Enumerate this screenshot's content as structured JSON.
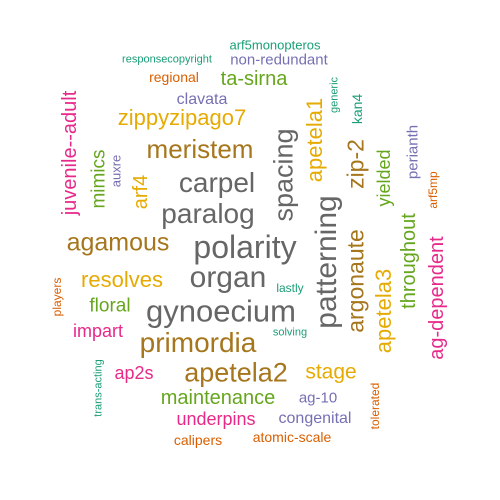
{
  "palette": {
    "green": "#1b9e77",
    "orange": "#d95f02",
    "purple": "#7570b3",
    "magenta": "#e7298a",
    "lime": "#66a61e",
    "gold": "#e6ab02",
    "brown": "#a6761d",
    "gray": "#666666"
  },
  "words": [
    {
      "text": "polarity",
      "color": "#666666"
    },
    {
      "text": "patterning",
      "color": "#666666"
    },
    {
      "text": "gynoecium",
      "color": "#666666"
    },
    {
      "text": "organ",
      "color": "#666666"
    },
    {
      "text": "paralog",
      "color": "#666666"
    },
    {
      "text": "carpel",
      "color": "#666666"
    },
    {
      "text": "spacing",
      "color": "#666666"
    },
    {
      "text": "primordia",
      "color": "#a6761d"
    },
    {
      "text": "apetela2",
      "color": "#a6761d"
    },
    {
      "text": "meristem",
      "color": "#a6761d"
    },
    {
      "text": "agamous",
      "color": "#a6761d"
    },
    {
      "text": "argonaute",
      "color": "#a6761d"
    },
    {
      "text": "zip-2",
      "color": "#a6761d"
    },
    {
      "text": "zippyzipago7",
      "color": "#e6ab02"
    },
    {
      "text": "resolves",
      "color": "#e6ab02"
    },
    {
      "text": "apetela1",
      "color": "#e6ab02"
    },
    {
      "text": "apetela3",
      "color": "#e6ab02"
    },
    {
      "text": "stage",
      "color": "#e6ab02"
    },
    {
      "text": "arf4",
      "color": "#e6ab02"
    },
    {
      "text": "ta-sirna",
      "color": "#66a61e"
    },
    {
      "text": "maintenance",
      "color": "#66a61e"
    },
    {
      "text": "floral",
      "color": "#66a61e"
    },
    {
      "text": "mimics",
      "color": "#66a61e"
    },
    {
      "text": "throughout",
      "color": "#66a61e"
    },
    {
      "text": "yielded",
      "color": "#66a61e"
    },
    {
      "text": "juvenile--adult",
      "color": "#e7298a"
    },
    {
      "text": "ag-dependent",
      "color": "#e7298a"
    },
    {
      "text": "impart",
      "color": "#e7298a"
    },
    {
      "text": "ap2s",
      "color": "#e7298a"
    },
    {
      "text": "underpins",
      "color": "#e7298a"
    },
    {
      "text": "responsecopyright",
      "color": "#1b9e77"
    },
    {
      "text": "arf5monopteros",
      "color": "#1b9e77"
    },
    {
      "text": "generic",
      "color": "#1b9e77"
    },
    {
      "text": "lastly",
      "color": "#1b9e77"
    },
    {
      "text": "solving",
      "color": "#1b9e77"
    },
    {
      "text": "trans-acting",
      "color": "#1b9e77"
    },
    {
      "text": "kan4",
      "color": "#1b9e77"
    },
    {
      "text": "non-redundant",
      "color": "#7570b3"
    },
    {
      "text": "clavata",
      "color": "#7570b3"
    },
    {
      "text": "auxre",
      "color": "#7570b3"
    },
    {
      "text": "perianth",
      "color": "#7570b3"
    },
    {
      "text": "congenital",
      "color": "#7570b3"
    },
    {
      "text": "ag-10",
      "color": "#7570b3"
    },
    {
      "text": "regional",
      "color": "#d95f02"
    },
    {
      "text": "arf5mp",
      "color": "#d95f02"
    },
    {
      "text": "players",
      "color": "#d95f02"
    },
    {
      "text": "tolerated",
      "color": "#d95f02"
    },
    {
      "text": "calipers",
      "color": "#d95f02"
    },
    {
      "text": "atomic-scale",
      "color": "#d95f02"
    }
  ]
}
